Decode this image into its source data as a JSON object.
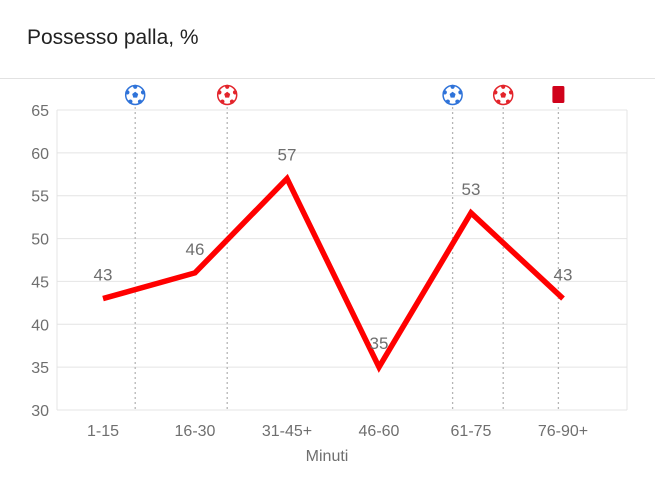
{
  "header": {
    "title": "Possesso palla, %"
  },
  "chart_data": {
    "type": "line",
    "title": "Possesso palla, %",
    "xlabel": "Minuti",
    "ylabel": "",
    "categories": [
      "1-15",
      "16-30",
      "31-45+",
      "46-60",
      "61-75",
      "76-90+"
    ],
    "series": [
      {
        "values": [
          43,
          46,
          57,
          35,
          53,
          43
        ],
        "color": "#ff0000"
      }
    ],
    "ylim": [
      30,
      65
    ],
    "yticks": [
      30,
      35,
      40,
      45,
      50,
      55,
      60,
      65
    ],
    "grid": true,
    "events": [
      {
        "minute_x": 0.35,
        "icon": "blue-soccer-ball-icon",
        "color": "#2f73d9"
      },
      {
        "minute_x": 1.35,
        "icon": "red-soccer-ball-icon",
        "color": "#e3242b"
      },
      {
        "minute_x": 3.8,
        "icon": "blue-soccer-ball-icon",
        "color": "#2f73d9"
      },
      {
        "minute_x": 4.35,
        "icon": "red-soccer-ball-icon",
        "color": "#e3242b"
      },
      {
        "minute_x": 4.95,
        "icon": "red-card-icon",
        "color": "#d0021b"
      }
    ]
  }
}
